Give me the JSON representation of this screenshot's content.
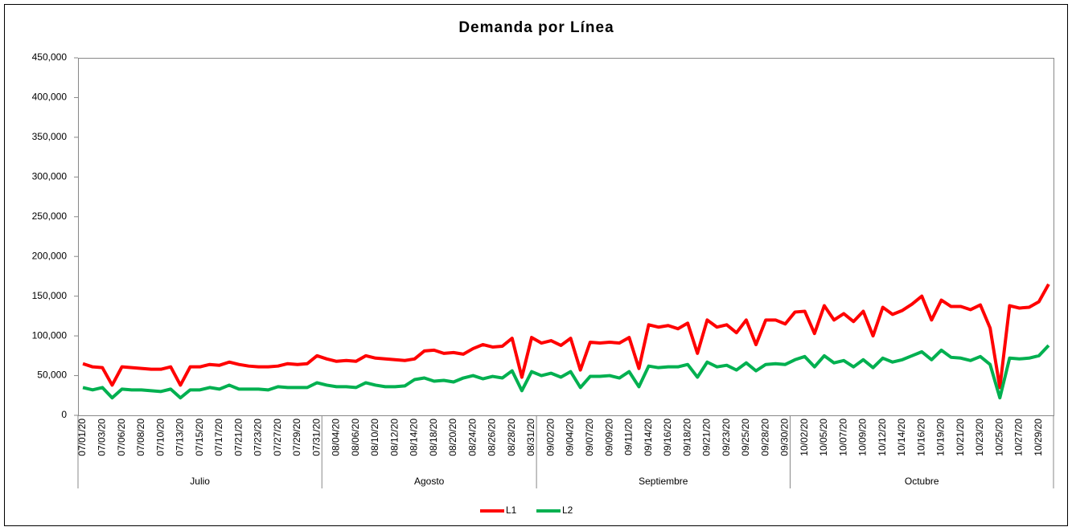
{
  "chart_data": {
    "type": "line",
    "title": "Demanda por Línea",
    "category_groups": [
      {
        "name": "Julio",
        "categories": [
          "07/01/20",
          null,
          "07/03/20",
          null,
          "07/06/20",
          null,
          "07/08/20",
          null,
          "07/10/20",
          null,
          "07/13/20",
          null,
          "07/15/20",
          null,
          "07/17/20",
          null,
          "07/21/20",
          null,
          "07/23/20",
          null,
          "07/27/20",
          null,
          "07/29/20",
          null,
          "07/31/20"
        ]
      },
      {
        "name": "Agosto",
        "categories": [
          null,
          "08/04/20",
          null,
          "08/06/20",
          null,
          "08/10/20",
          null,
          "08/12/20",
          null,
          "08/14/20",
          null,
          "08/18/20",
          null,
          "08/20/20",
          null,
          "08/24/20",
          null,
          "08/26/20",
          null,
          "08/28/20",
          null,
          "08/31/20"
        ]
      },
      {
        "name": "Septiembre",
        "categories": [
          null,
          "09/02/20",
          null,
          "09/04/20",
          null,
          "09/07/20",
          null,
          "09/09/20",
          null,
          "09/11/20",
          null,
          "09/14/20",
          null,
          "09/16/20",
          null,
          "09/18/20",
          null,
          "09/21/20",
          null,
          "09/23/20",
          null,
          "09/25/20",
          null,
          "09/28/20",
          null,
          "09/30/20"
        ]
      },
      {
        "name": "Octubre",
        "categories": [
          null,
          "10/02/20",
          null,
          "10/05/20",
          null,
          "10/07/20",
          null,
          "10/09/20",
          null,
          "10/12/20",
          null,
          "10/14/20",
          null,
          "10/16/20",
          null,
          "10/19/20",
          null,
          "10/21/20",
          null,
          "10/23/20",
          null,
          "10/25/20",
          null,
          "10/27/20",
          null,
          "10/29/20",
          null
        ]
      }
    ],
    "series": [
      {
        "name": "L1",
        "color": "#ff0000",
        "values": [
          65000,
          61000,
          60000,
          38000,
          61000,
          60000,
          59000,
          58000,
          58000,
          61000,
          38000,
          61000,
          61000,
          64000,
          63000,
          67000,
          64000,
          62000,
          61000,
          61000,
          62000,
          65000,
          64000,
          65000,
          75000,
          71000,
          68000,
          69000,
          68000,
          75000,
          72000,
          71000,
          70000,
          69000,
          71000,
          81000,
          82000,
          78000,
          79000,
          77000,
          84000,
          89000,
          86000,
          87000,
          97000,
          48000,
          98000,
          91000,
          94000,
          88000,
          97000,
          57000,
          92000,
          91000,
          92000,
          91000,
          98000,
          59000,
          114000,
          111000,
          113000,
          109000,
          116000,
          78000,
          120000,
          111000,
          114000,
          104000,
          120000,
          89000,
          120000,
          120000,
          115000,
          130000,
          131000,
          103000,
          138000,
          120000,
          128000,
          118000,
          131000,
          100000,
          136000,
          127000,
          132000,
          140000,
          150000,
          120000,
          145000,
          137000,
          137000,
          133000,
          139000,
          110000,
          35000,
          138000,
          135000,
          136000,
          143000,
          165000
        ]
      },
      {
        "name": "L2",
        "color": "#00b050",
        "values": [
          35000,
          32000,
          35000,
          22000,
          33000,
          32000,
          32000,
          31000,
          30000,
          33000,
          22000,
          32000,
          32000,
          35000,
          33000,
          38000,
          33000,
          33000,
          33000,
          32000,
          36000,
          35000,
          35000,
          35000,
          41000,
          38000,
          36000,
          36000,
          35000,
          41000,
          38000,
          36000,
          36000,
          37000,
          45000,
          47000,
          43000,
          44000,
          42000,
          47000,
          50000,
          46000,
          49000,
          47000,
          56000,
          31000,
          55000,
          50000,
          53000,
          48000,
          55000,
          35000,
          49000,
          49000,
          50000,
          47000,
          55000,
          36000,
          62000,
          60000,
          61000,
          61000,
          64000,
          48000,
          67000,
          61000,
          63000,
          57000,
          66000,
          56000,
          64000,
          65000,
          64000,
          70000,
          74000,
          61000,
          75000,
          66000,
          69000,
          61000,
          70000,
          60000,
          72000,
          67000,
          70000,
          75000,
          80000,
          70000,
          82000,
          73000,
          72000,
          69000,
          74000,
          64000,
          22000,
          72000,
          71000,
          72000,
          75000,
          88000
        ]
      }
    ],
    "ylim": [
      0,
      450000
    ],
    "yticks": [
      0,
      {
        "value": 50000,
        "label": "50,000"
      },
      {
        "value": 100000,
        "label": "100,000"
      },
      {
        "value": 150000,
        "label": "150,000"
      },
      {
        "value": 200000,
        "label": "200,000"
      },
      {
        "value": 250000,
        "label": "250,000"
      },
      {
        "value": 300000,
        "label": "300,000"
      },
      {
        "value": 350000,
        "label": "350,000"
      },
      {
        "value": 400000,
        "label": "400,000"
      },
      {
        "value": 450000,
        "label": "450,000"
      }
    ],
    "grid": false,
    "legend": "bottom"
  }
}
